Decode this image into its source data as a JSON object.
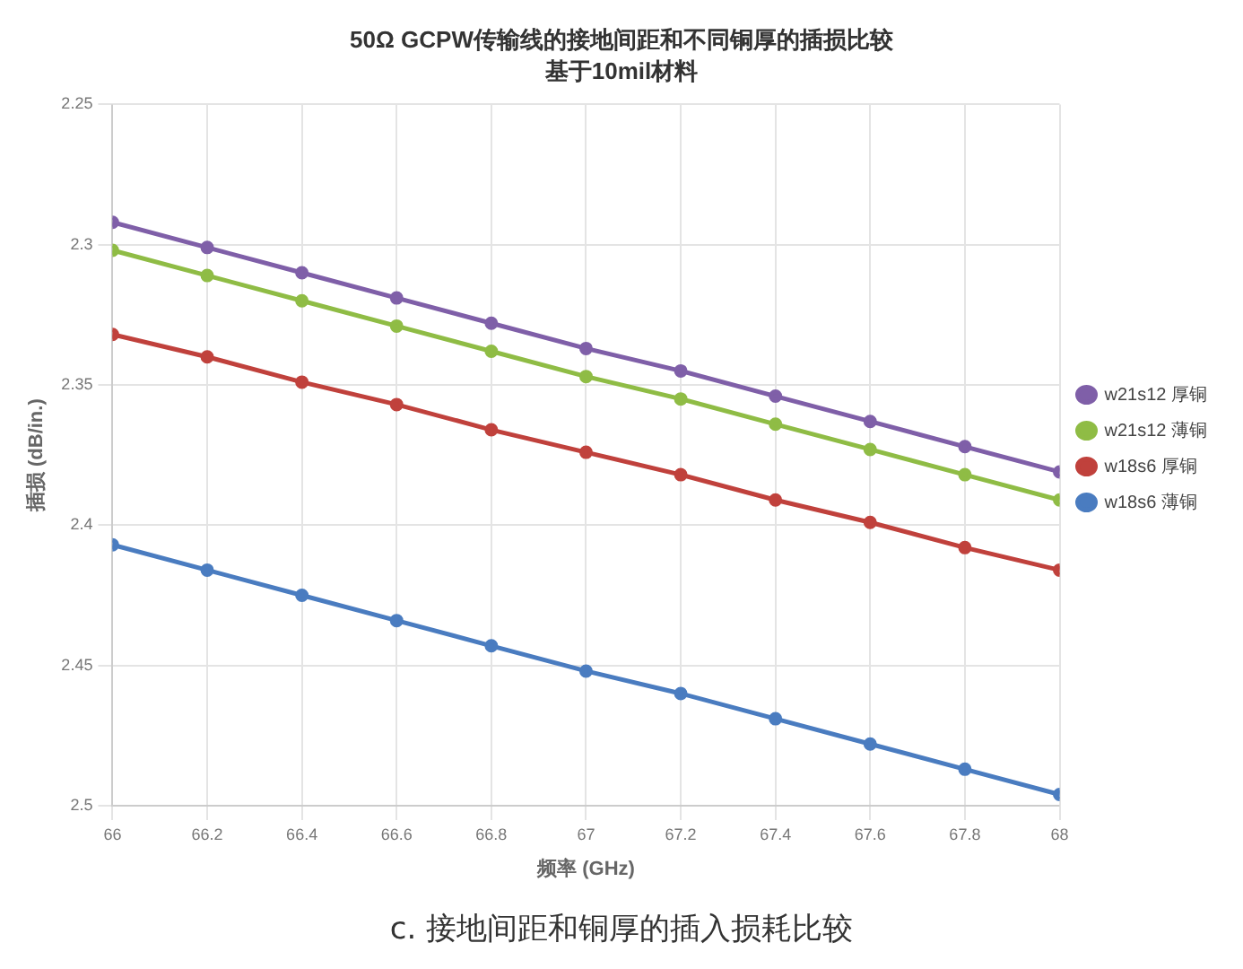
{
  "chart_data": {
    "type": "line",
    "title": "50Ω GCPW传输线的接地间距和不同铜厚的插损比较",
    "subtitle": "基于10mil材料",
    "xlabel": "频率 (GHz)",
    "ylabel": "插损 (dB/in.)",
    "x": [
      66,
      66.2,
      66.4,
      66.6,
      66.8,
      67,
      67.2,
      67.4,
      67.6,
      67.8,
      68
    ],
    "series": [
      {
        "name": "w21s12 厚铜",
        "color": "#7f5fa8",
        "values": [
          2.292,
          2.301,
          2.31,
          2.319,
          2.328,
          2.337,
          2.345,
          2.354,
          2.363,
          2.372,
          2.381
        ]
      },
      {
        "name": "w21s12 薄铜",
        "color": "#8fbc45",
        "values": [
          2.302,
          2.311,
          2.32,
          2.329,
          2.338,
          2.347,
          2.355,
          2.364,
          2.373,
          2.382,
          2.391
        ]
      },
      {
        "name": "w18s6 厚铜",
        "color": "#c0413c",
        "values": [
          2.332,
          2.34,
          2.349,
          2.357,
          2.366,
          2.374,
          2.382,
          2.391,
          2.399,
          2.408,
          2.416
        ]
      },
      {
        "name": "w18s6 薄铜",
        "color": "#4a7cc0",
        "values": [
          2.407,
          2.416,
          2.425,
          2.434,
          2.443,
          2.452,
          2.46,
          2.469,
          2.478,
          2.487,
          2.496
        ]
      }
    ],
    "xlim": [
      66,
      68
    ],
    "xticks": [
      66,
      66.2,
      66.4,
      66.6,
      66.8,
      67,
      67.2,
      67.4,
      67.6,
      67.8,
      68
    ],
    "ylim": [
      2.5,
      2.25
    ],
    "yticks": [
      2.25,
      2.3,
      2.35,
      2.4,
      2.45,
      2.5
    ],
    "grid": true,
    "legend": "right",
    "marker": "circle",
    "line_style": "solid",
    "annotations": [
      "c. 接地间距和铜厚的插入损耗比较"
    ]
  }
}
